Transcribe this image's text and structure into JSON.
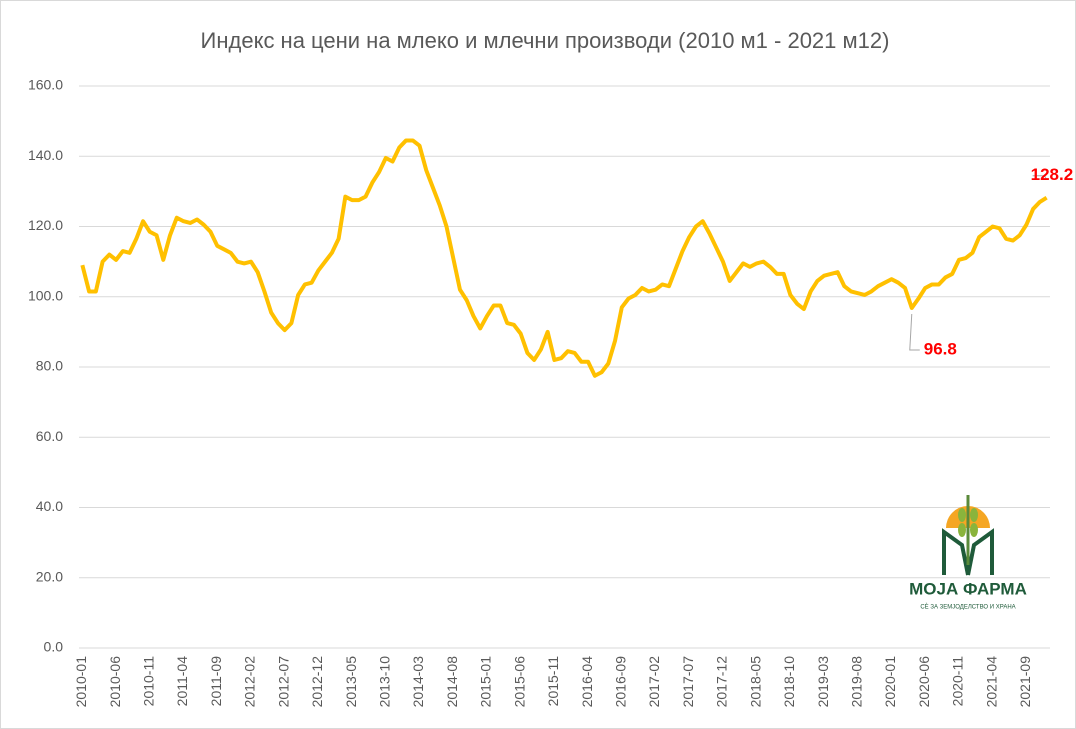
{
  "chart_data": {
    "type": "line",
    "title": "Индекс на цени на млеко и млечни производи (2010 м1 - 2021 м12)",
    "categories": [
      "2010-01",
      null,
      null,
      null,
      null,
      "2010-06",
      null,
      null,
      null,
      null,
      "2010-11",
      null,
      null,
      null,
      null,
      "2011-04",
      null,
      null,
      null,
      null,
      "2011-09",
      null,
      null,
      null,
      null,
      "2012-02",
      null,
      null,
      null,
      null,
      "2012-07",
      null,
      null,
      null,
      null,
      "2012-12",
      null,
      null,
      null,
      null,
      "2013-05",
      null,
      null,
      null,
      null,
      "2013-10",
      null,
      null,
      null,
      null,
      "2014-03",
      null,
      null,
      null,
      null,
      "2014-08",
      null,
      null,
      null,
      null,
      "2015-01",
      null,
      null,
      null,
      null,
      "2015-06",
      null,
      null,
      null,
      null,
      "2015-11",
      null,
      null,
      null,
      null,
      "2016-04",
      null,
      null,
      null,
      null,
      "2016-09",
      null,
      null,
      null,
      null,
      "2017-02",
      null,
      null,
      null,
      null,
      "2017-07",
      null,
      null,
      null,
      null,
      "2017-12",
      null,
      null,
      null,
      null,
      "2018-05",
      null,
      null,
      null,
      null,
      "2018-10",
      null,
      null,
      null,
      null,
      "2019-03",
      null,
      null,
      null,
      null,
      "2019-08",
      null,
      null,
      null,
      null,
      "2020-01",
      null,
      null,
      null,
      null,
      "2020-06",
      null,
      null,
      null,
      null,
      "2020-11",
      null,
      null,
      null,
      null,
      "2021-04",
      null,
      null,
      null,
      null,
      "2021-09",
      null,
      null,
      null
    ],
    "series": [
      {
        "color": "#ffc000",
        "values": [
          109,
          101.5,
          101.5,
          110,
          112,
          110.5,
          113,
          112.5,
          116.5,
          121.5,
          118.5,
          117.5,
          110.5,
          117.5,
          122.5,
          121.5,
          121,
          122,
          120.5,
          118.5,
          114.5,
          113.5,
          112.5,
          110,
          109.5,
          110,
          107,
          101.5,
          95.5,
          92.5,
          90.5,
          92.5,
          100.5,
          103.5,
          104,
          107.5,
          110,
          112.5,
          116.5,
          128.5,
          127.5,
          127.5,
          128.5,
          132.5,
          135.5,
          139.5,
          138.5,
          142.5,
          144.5,
          144.5,
          143,
          136,
          131,
          126,
          120,
          111,
          102,
          99,
          94.5,
          91,
          94.5,
          97.5,
          97.5,
          92.5,
          92,
          89.5,
          84,
          82,
          85,
          90,
          82,
          82.5,
          84.5,
          84,
          81.5,
          81.5,
          77.5,
          78.5,
          81,
          87.5,
          97,
          99.5,
          100.5,
          102.5,
          101.5,
          102,
          103.5,
          103,
          108,
          113,
          117,
          120,
          121.5,
          118,
          114,
          110,
          104.5,
          107,
          109.5,
          108.5,
          109.5,
          110,
          108.5,
          106.5,
          106.5,
          100.5,
          98,
          96.5,
          101.5,
          104.5,
          106,
          106.5,
          107,
          103,
          101.5,
          101,
          100.5,
          101.5,
          103,
          104,
          105,
          104,
          102.5,
          96.8,
          99.5,
          102.5,
          103.5,
          103.5,
          105.5,
          106.5,
          110.5,
          111,
          112.5,
          117,
          118.5,
          120,
          119.5,
          116.5,
          116,
          117.5,
          120.5,
          125,
          127,
          128.2
        ],
        "value_labels": [
          null,
          null,
          null,
          null,
          null,
          null,
          null,
          null,
          null,
          null,
          null,
          null,
          null,
          null,
          null,
          null,
          null,
          null,
          null,
          null,
          null,
          null,
          null,
          null,
          null,
          null,
          null,
          null,
          null,
          null,
          null,
          null,
          null,
          null,
          null,
          null,
          null,
          null,
          null,
          null,
          null,
          null,
          null,
          null,
          null,
          null,
          null,
          null,
          null,
          null,
          null,
          null,
          null,
          null,
          null,
          null,
          null,
          null,
          null,
          null,
          null,
          null,
          null,
          null,
          null,
          null,
          null,
          null,
          null,
          null,
          null,
          null,
          null,
          null,
          null,
          null,
          null,
          null,
          null,
          null,
          null,
          null,
          null,
          null,
          null,
          null,
          null,
          null,
          null,
          null,
          null,
          null,
          null,
          null,
          null,
          null,
          null,
          null,
          null,
          null,
          null,
          null,
          null,
          null,
          null,
          null,
          null,
          null,
          null,
          null,
          null,
          null,
          null,
          null,
          null,
          null,
          null,
          null,
          null,
          null,
          null,
          null,
          null,
          "96.8",
          null,
          null,
          null,
          null,
          null,
          null,
          null,
          null,
          null,
          null,
          null,
          null,
          null,
          null,
          null,
          null,
          null,
          null,
          null,
          "128.2"
        ],
        "label_color": "#ff0000"
      }
    ],
    "ylim": [
      0,
      160
    ],
    "yticks": [
      {
        "value": 0,
        "label": "0.0"
      },
      {
        "value": 20,
        "label": "20.0"
      },
      {
        "value": 40,
        "label": "40.0"
      },
      {
        "value": 60,
        "label": "60.0"
      },
      {
        "value": 80,
        "label": "80.0"
      },
      {
        "value": 100,
        "label": "100.0"
      },
      {
        "value": 120,
        "label": "120.0"
      },
      {
        "value": 140,
        "label": "140.0"
      },
      {
        "value": 160,
        "label": "160.0"
      }
    ],
    "grid": true
  },
  "logo": {
    "name": "МОЈА ФАРМА",
    "tagline": "СÈ ЗА ЗЕМЈОДЕЛСТВО И ХРАНА"
  }
}
